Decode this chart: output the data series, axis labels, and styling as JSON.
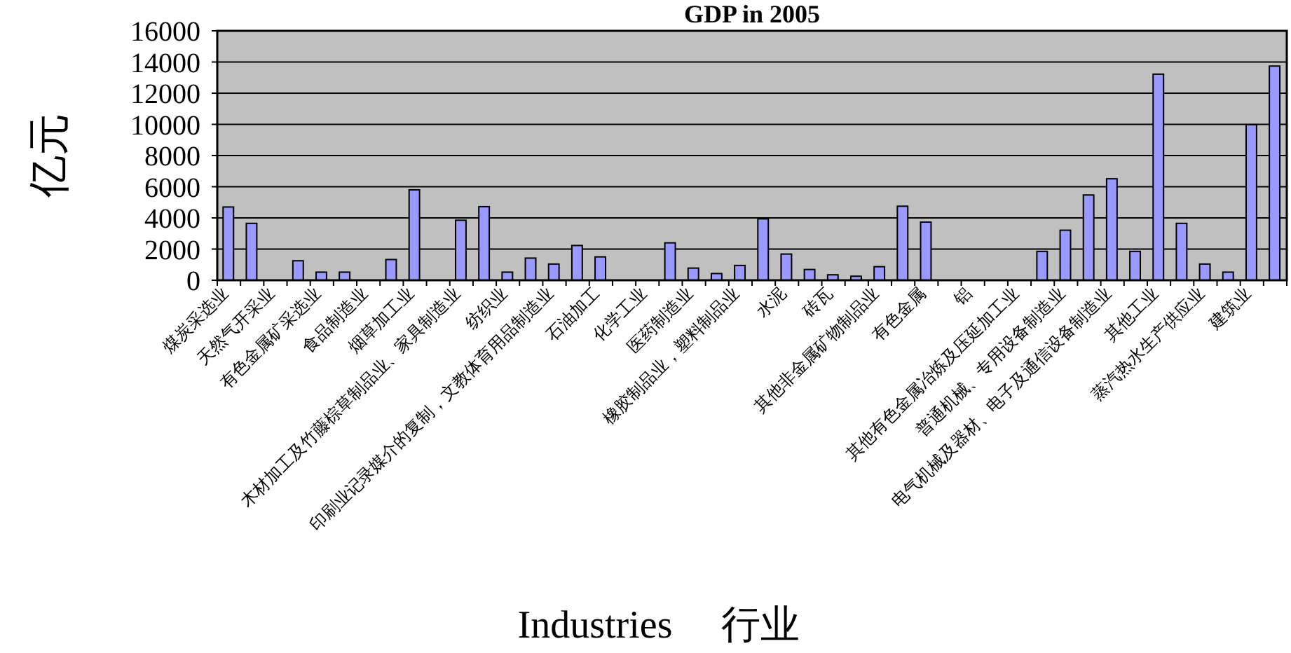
{
  "chart_data": {
    "type": "bar",
    "title": "GDP in 2005",
    "xlabel": "Industries     行业",
    "ylabel": "亿元",
    "categories": [
      "煤炭采选业",
      null,
      "天然气开采业",
      null,
      "有色金属矿采选业",
      null,
      "食品制造业",
      null,
      "烟草加工业",
      null,
      "木材加工及竹藤棕草制品业、家具制造业",
      null,
      "纺织业",
      null,
      "印刷业记录媒介的复制，文教体育用品制造业",
      null,
      "石油加工",
      null,
      "化学工业",
      null,
      "医药制造业",
      null,
      "橡胶制品业，塑料制品业",
      null,
      "水泥",
      null,
      "砖瓦",
      null,
      "其他非金属矿物制品业",
      null,
      "有色金属",
      null,
      "铝",
      null,
      "其他有色金属冶炼及压延加工业",
      null,
      "普通机械、专用设备制造业",
      null,
      "电气机械及器材、电子及通信设备制造业",
      null,
      "其他工业",
      null,
      "蒸汽热水生产供应业",
      null,
      "建筑业",
      null
    ],
    "values": [
      4700,
      3650,
      null,
      1250,
      520,
      520,
      null,
      1330,
      5800,
      null,
      3850,
      4720,
      520,
      1420,
      1040,
      2230,
      1500,
      null,
      null,
      2400,
      780,
      430,
      950,
      3940,
      1680,
      690,
      350,
      260,
      870,
      4750,
      3730,
      null,
      null,
      null,
      null,
      1850,
      3210,
      5470,
      6510,
      1850,
      13220,
      3650,
      1040,
      520,
      9980,
      13740
    ],
    "color": "#9999ff",
    "ylim": [
      0,
      16000
    ],
    "yticks": [
      0,
      2000,
      4000,
      6000,
      8000,
      10000,
      12000,
      14000,
      16000
    ],
    "grid": "y"
  }
}
